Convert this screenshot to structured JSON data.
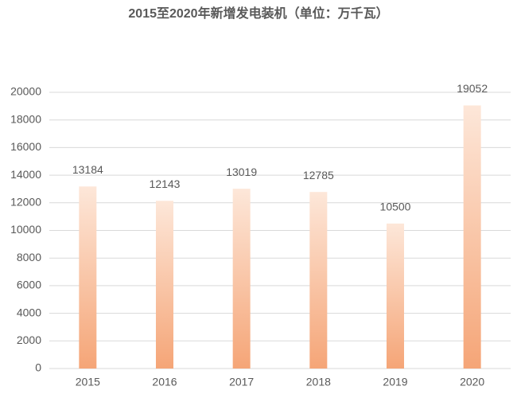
{
  "chart_data": {
    "type": "bar",
    "title": "2015至2020年新增发电装机（单位：万千瓦）",
    "categories": [
      "2015",
      "2016",
      "2017",
      "2018",
      "2019",
      "2020"
    ],
    "values": [
      13184,
      12143,
      13019,
      12785,
      10500,
      19052
    ],
    "gradient": [
      "#fde7d9",
      "#f5a577"
    ],
    "ylim": [
      0,
      20000
    ],
    "yticks": [
      0,
      2000,
      4000,
      6000,
      8000,
      10000,
      12000,
      14000,
      16000,
      18000,
      20000
    ],
    "grid": true
  }
}
